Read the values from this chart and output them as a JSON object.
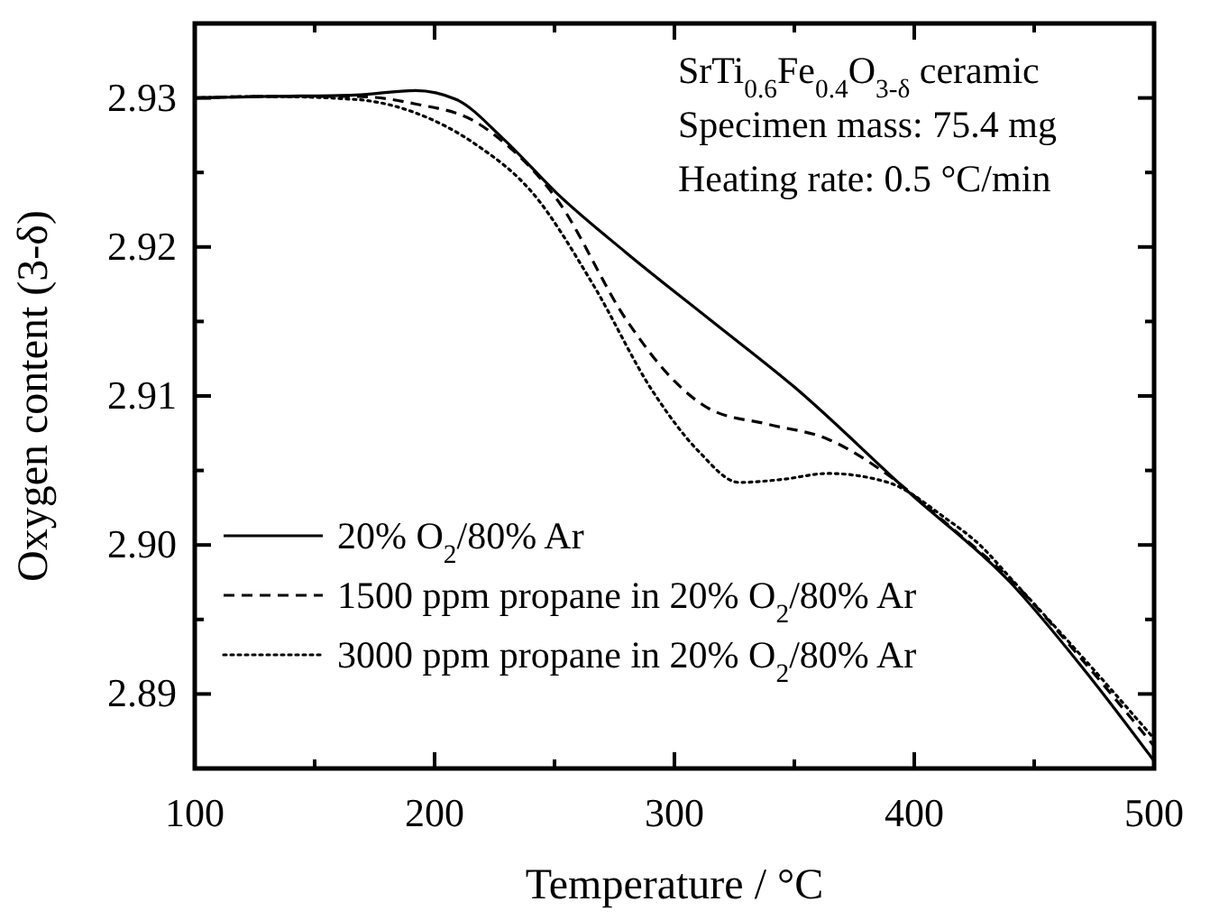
{
  "chart_data": {
    "type": "line",
    "xlabel": "Temperature / °C",
    "ylabel": "Oxygen content (3-δ)",
    "xlim": [
      100,
      500
    ],
    "xticks": [
      100,
      {
        "value": 150,
        "label": null
      },
      200,
      {
        "value": 250,
        "label": null
      },
      300,
      {
        "value": 350,
        "label": null
      },
      400,
      {
        "value": 450,
        "label": null
      },
      500
    ],
    "ylim": [
      2.885,
      2.935
    ],
    "yticks": [
      {
        "value": 2.885,
        "label": null
      },
      2.89,
      {
        "value": 2.895,
        "label": null
      },
      "2.90",
      {
        "value": 2.905,
        "label": null
      },
      2.91,
      {
        "value": 2.915,
        "label": null
      },
      2.92,
      {
        "value": 2.925,
        "label": null
      },
      2.93
    ],
    "grid": false,
    "legend": "bottom left",
    "annotations": [
      "SrTi$_{0.6}$Fe$_{0.4}$O$_{3-δ}$ ceramic",
      "Specimen mass: 75.4 mg",
      "Heating rate: 0.5 °C/min"
    ],
    "series": [
      {
        "name": "20% O$_{2}$/80% Ar",
        "color": "#000000",
        "line_style": "solid",
        "x": [
          100,
          130,
          167,
          192,
          209,
          229,
          251,
          280,
          315,
          350,
          398,
          440,
          470,
          500
        ],
        "values": [
          2.93,
          2.9301,
          2.9302,
          2.9305,
          2.9299,
          2.9272,
          2.9236,
          2.9196,
          2.9151,
          2.9106,
          2.9035,
          2.8975,
          2.8918,
          2.8855
        ]
      },
      {
        "name": "1500 ppm propane in 20% O$_{2}$/80% Ar",
        "color": "#000000",
        "line_style": "dashed",
        "x": [
          100,
          130,
          167,
          192,
          217,
          229,
          251,
          280,
          300,
          315,
          339,
          364,
          389,
          413,
          440,
          470,
          500
        ],
        "values": [
          2.93,
          2.9301,
          2.9301,
          2.9296,
          2.9284,
          2.927,
          2.9232,
          2.9151,
          2.911,
          2.9091,
          2.9081,
          2.9071,
          2.9047,
          2.9015,
          2.8977,
          2.8923,
          2.8865
        ]
      },
      {
        "name": "3000 ppm propane in 20% O$_{2}$/80% Ar",
        "color": "#000000",
        "line_style": "dotted",
        "x": [
          100,
          130,
          167,
          192,
          217,
          241,
          266,
          291,
          310,
          327,
          345,
          364,
          389,
          413,
          428,
          440,
          470,
          500
        ],
        "values": [
          2.93,
          2.9301,
          2.9299,
          2.929,
          2.9269,
          2.9236,
          2.9175,
          2.9103,
          2.9063,
          2.9042,
          2.9044,
          2.9048,
          2.9042,
          2.9018,
          2.8999,
          2.8978,
          2.8925,
          2.887
        ]
      }
    ]
  }
}
